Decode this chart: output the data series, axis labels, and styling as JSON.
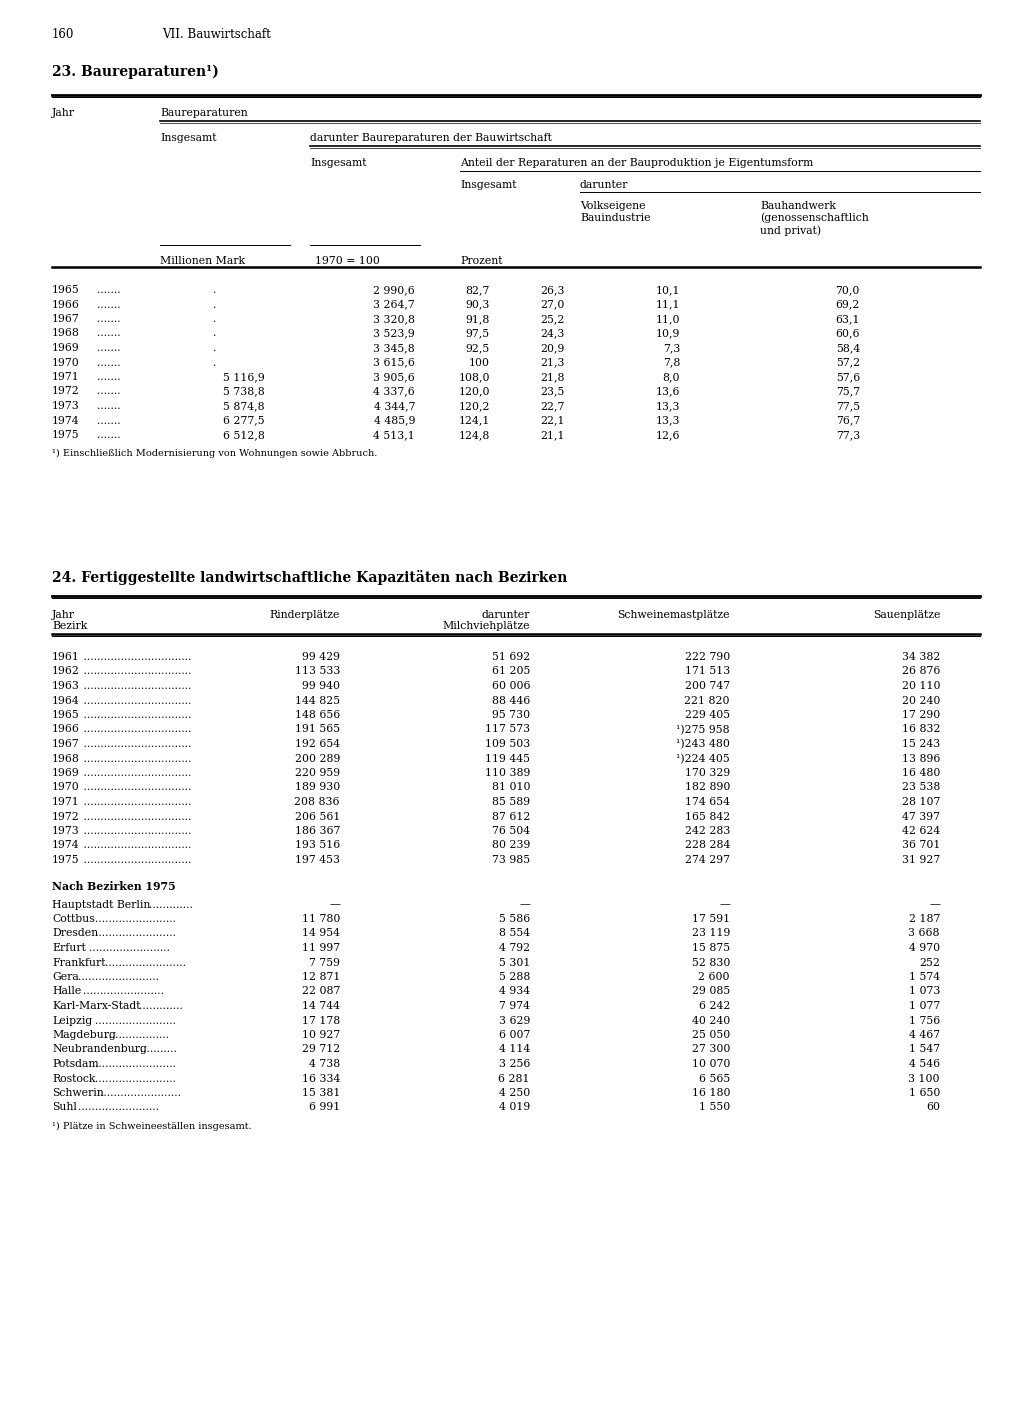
{
  "page_number": "160",
  "page_header": "VII. Bauwirtschaft",
  "table1_title": "23. Baureparaturen¹)",
  "table1_footnote": "¹) Einschließlich Modernisierung von Wohnungen sowie Abbruch.",
  "table1_data": [
    [
      "1965",
      ".......",
      ".",
      "2 990,6",
      "82,7",
      "26,3",
      "10,1",
      "70,0"
    ],
    [
      "1966",
      ".......",
      ".",
      "3 264,7",
      "90,3",
      "27,0",
      "11,1",
      "69,2"
    ],
    [
      "1967",
      ".......",
      ".",
      "3 320,8",
      "91,8",
      "25,2",
      "11,0",
      "63,1"
    ],
    [
      "1968",
      ".......",
      ".",
      "3 523,9",
      "97,5",
      "24,3",
      "10,9",
      "60,6"
    ],
    [
      "1969",
      ".......",
      ".",
      "3 345,8",
      "92,5",
      "20,9",
      "7,3",
      "58,4"
    ],
    [
      "1970",
      ".......",
      ".",
      "3 615,6",
      "100",
      "21,3",
      "7,8",
      "57,2"
    ],
    [
      "1971",
      ".......",
      "5 116,9",
      "3 905,6",
      "108,0",
      "21,8",
      "8,0",
      "57,6"
    ],
    [
      "1972",
      ".......",
      "5 738,8",
      "4 337,6",
      "120,0",
      "23,5",
      "13,6",
      "75,7"
    ],
    [
      "1973",
      ".......",
      "5 874,8",
      "4 344,7",
      "120,2",
      "22,7",
      "13,3",
      "77,5"
    ],
    [
      "1974",
      ".......",
      "6 277,5",
      "4 485,9",
      "124,1",
      "22,1",
      "13,3",
      "76,7"
    ],
    [
      "1975",
      ".......",
      "6 512,8",
      "4 513,1",
      "124,8",
      "21,1",
      "12,6",
      "77,3"
    ]
  ],
  "table2_title": "24. Fertiggestellte landwirtschaftliche Kapazitäten nach Bezirken",
  "table2_data_years": [
    [
      "1961",
      "99 429",
      "51 692",
      "222 790",
      "34 382"
    ],
    [
      "1962",
      "113 533",
      "61 205",
      "171 513",
      "26 876"
    ],
    [
      "1963",
      "99 940",
      "60 006",
      "200 747",
      "20 110"
    ],
    [
      "1964",
      "144 825",
      "88 446",
      "221 820",
      "20 240"
    ],
    [
      "1965",
      "148 656",
      "95 730",
      "229 405",
      "17 290"
    ],
    [
      "1966",
      "191 565",
      "117 573",
      "¹)275 958",
      "16 832"
    ],
    [
      "1967",
      "192 654",
      "109 503",
      "¹)243 480",
      "15 243"
    ],
    [
      "1968",
      "200 289",
      "119 445",
      "¹)224 405",
      "13 896"
    ],
    [
      "1969",
      "220 959",
      "110 389",
      "170 329",
      "16 480"
    ],
    [
      "1970",
      "189 930",
      "81 010",
      "182 890",
      "23 538"
    ],
    [
      "1971",
      "208 836",
      "85 589",
      "174 654",
      "28 107"
    ],
    [
      "1972",
      "206 561",
      "87 612",
      "165 842",
      "47 397"
    ],
    [
      "1973",
      "186 367",
      "76 504",
      "242 283",
      "42 624"
    ],
    [
      "1974",
      "193 516",
      "80 239",
      "228 284",
      "36 701"
    ],
    [
      "1975",
      "197 453",
      "73 985",
      "274 297",
      "31 927"
    ]
  ],
  "table2_section2_title": "Nach Bezirken 1975",
  "table2_data_bezirke": [
    [
      "Hauptstadt Berlin",
      ".",
      "—",
      "—",
      "—",
      "—"
    ],
    [
      "Cottbus",
      ".",
      "11 780",
      "5 586",
      "17 591",
      "2 187"
    ],
    [
      "Dresden",
      ".",
      "14 954",
      "8 554",
      "23 119",
      "3 668"
    ],
    [
      "Erfurt",
      ".",
      "11 997",
      "4 792",
      "15 875",
      "4 970"
    ],
    [
      "Frankfurt",
      ".",
      "7 759",
      "5 301",
      "52 830",
      "252"
    ],
    [
      "Gera",
      ".",
      "12 871",
      "5 288",
      "2 600",
      "1 574"
    ],
    [
      "Halle",
      ".",
      "22 087",
      "4 934",
      "29 085",
      "1 073"
    ],
    [
      "Karl-Marx-Stadt",
      ".",
      "14 744",
      "7 974",
      "6 242",
      "1 077"
    ],
    [
      "Leipzig",
      ".",
      "17 178",
      "3 629",
      "40 240",
      "1 756"
    ],
    [
      "Magdeburg",
      ".",
      "10 927",
      "6 007",
      "25 050",
      "4 467"
    ],
    [
      "Neubrandenburg",
      ".",
      "29 712",
      "4 114",
      "27 300",
      "1 547"
    ],
    [
      "Potsdam",
      ".",
      "4 738",
      "3 256",
      "10 070",
      "4 546"
    ],
    [
      "Rostock",
      ".",
      "16 334",
      "6 281",
      "6 565",
      "3 100"
    ],
    [
      "Schwerin",
      ".",
      "15 381",
      "4 250",
      "16 180",
      "1 650"
    ],
    [
      "Suhl",
      ".",
      "6 991",
      "4 019",
      "1 550",
      "60"
    ]
  ],
  "table2_footnote": "¹) Plätze in Schweineeställen insgesamt.",
  "bezirke_dots": {
    "Hauptstadt Berlin": ".............",
    "Cottbus": "........................",
    "Dresden": "........................",
    "Erfurt": "........................",
    "Frankfurt": "........................",
    "Gera": "........................",
    "Halle": "........................",
    "Karl-Marx-Stadt": ".............",
    "Leipzig": "........................",
    "Magdeburg": "...................",
    "Neubrandenburg": ".............",
    "Potsdam": "........................",
    "Rostock": "........................",
    "Schwerin": "........................",
    "Suhl": "........................"
  }
}
